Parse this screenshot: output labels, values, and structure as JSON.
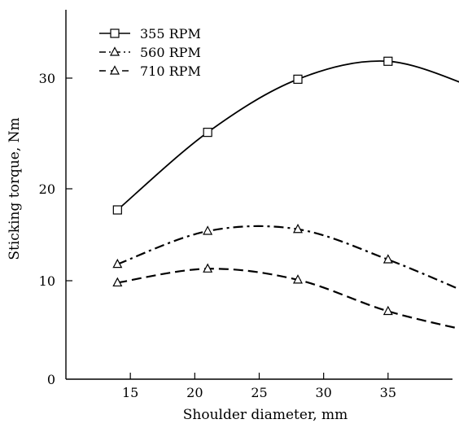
{
  "chart_data": {
    "type": "line",
    "xlabel": "Shoulder diameter, mm",
    "ylabel": "Sticking torque, Nm",
    "xlim": [
      10,
      40
    ],
    "ylim": [
      0,
      35
    ],
    "xticks": [
      15,
      20,
      25,
      30,
      35
    ],
    "yticks": [
      0,
      10,
      20,
      30
    ],
    "grid": false,
    "legend_position": "top-left",
    "series": [
      {
        "name": "355 RPM",
        "marker": "square",
        "line_style": "solid",
        "x": [
          14,
          21,
          28,
          35,
          42
        ],
        "y": [
          17.7,
          25.1,
          29.9,
          31.4,
          29.0
        ]
      },
      {
        "name": "560 RPM",
        "marker": "triangle",
        "line_style": "dash-dot",
        "x": [
          14,
          21,
          28,
          35,
          42
        ],
        "y": [
          11.8,
          15.4,
          15.6,
          12.3,
          8.3
        ]
      },
      {
        "name": "710 RPM",
        "marker": "triangle",
        "line_style": "dashed",
        "x": [
          14,
          21,
          28,
          35,
          42
        ],
        "y": [
          9.8,
          11.3,
          10.1,
          6.9,
          4.7
        ]
      }
    ]
  }
}
